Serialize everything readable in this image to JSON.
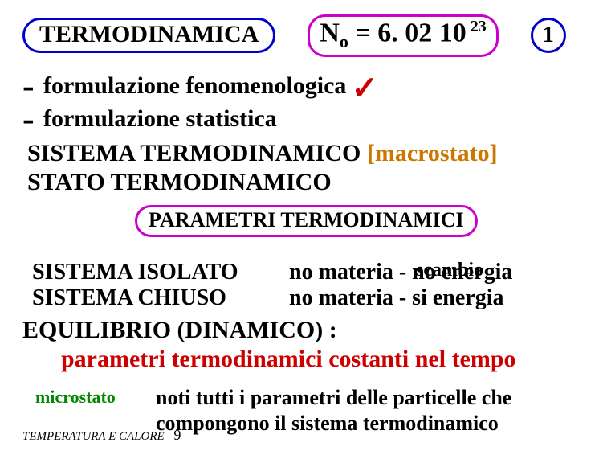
{
  "header": {
    "title": "TERMODINAMICA",
    "title_border_color": "#0000cc",
    "avogadro_html": "N<span class=\"sub\">o</span> = 6. 02 10<span class=\"sup\"> 23</span>",
    "avogadro_border_color": "#cc00cc",
    "page_number": "1",
    "page_border_color": "#0000cc"
  },
  "bullets": {
    "items": [
      {
        "text": "formulazione  fenomenologica",
        "checked": true
      },
      {
        "text": "formulazione  statistica",
        "checked": false
      }
    ],
    "check_color": "#cc0000"
  },
  "sistema_block": {
    "line1_a": "SISTEMA  TERMODINAMICO",
    "line1_b": "[macrostato]",
    "line2": "STATO  TERMODINAMICO",
    "macro_color": "#cc7700"
  },
  "parametri": {
    "label": "PARAMETRI  TERMODINAMICI",
    "border_color": "#cc00cc"
  },
  "scambio": {
    "heading": "scambio",
    "rows": [
      {
        "left": "SISTEMA  ISOLATO",
        "right": "no materia  -  no energia"
      },
      {
        "left": "SISTEMA  CHIUSO",
        "right": "no materia  -  si  energia"
      }
    ]
  },
  "equilibrio": {
    "line1": "EQUILIBRIO  (DINAMICO)  :",
    "line2": "parametri termodinamici  costanti nel tempo",
    "line2_color": "#cc0000"
  },
  "microstato": {
    "label": "microstato",
    "label_color": "#008800",
    "text_line1": "noti  tutti  i  parametri  delle  particelle  che",
    "text_line2": "compongono  il  sistema  termodinamico"
  },
  "footer": {
    "text": "TEMPERATURA E CALORE",
    "page": "9"
  }
}
